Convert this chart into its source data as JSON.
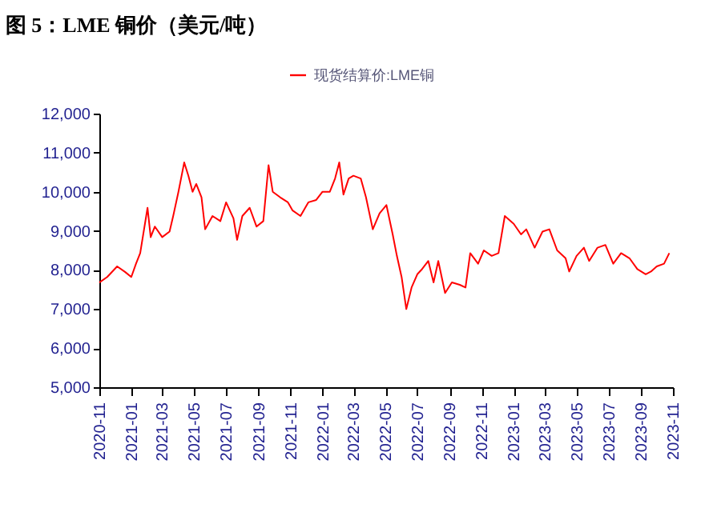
{
  "chart_data": {
    "type": "line",
    "title": "图 5：LME 铜价（美元/吨）",
    "x": [
      "2020-11-01",
      "2020-11-16",
      "2020-12-05",
      "2020-12-20",
      "2021-01-01",
      "2021-01-10",
      "2021-01-18",
      "2021-02-01",
      "2021-02-07",
      "2021-02-15",
      "2021-03-01",
      "2021-03-15",
      "2021-03-22",
      "2021-04-01",
      "2021-04-12",
      "2021-04-20",
      "2021-04-28",
      "2021-05-05",
      "2021-05-15",
      "2021-05-22",
      "2021-06-05",
      "2021-06-20",
      "2021-07-01",
      "2021-07-15",
      "2021-07-22",
      "2021-08-01",
      "2021-08-15",
      "2021-08-28",
      "2021-09-10",
      "2021-09-20",
      "2021-09-28",
      "2021-10-12",
      "2021-10-27",
      "2021-11-05",
      "2021-11-20",
      "2021-12-05",
      "2021-12-20",
      "2022-01-01",
      "2022-01-15",
      "2022-01-25",
      "2022-02-02",
      "2022-02-10",
      "2022-02-20",
      "2022-03-01",
      "2022-03-15",
      "2022-03-25",
      "2022-04-07",
      "2022-04-20",
      "2022-05-03",
      "2022-05-15",
      "2022-05-23",
      "2022-06-01",
      "2022-06-10",
      "2022-06-20",
      "2022-07-01",
      "2022-07-10",
      "2022-07-22",
      "2022-08-01",
      "2022-08-10",
      "2022-08-23",
      "2022-09-05",
      "2022-09-20",
      "2022-10-01",
      "2022-10-10",
      "2022-10-25",
      "2022-11-05",
      "2022-11-20",
      "2022-12-03",
      "2022-12-15",
      "2023-01-01",
      "2023-01-15",
      "2023-01-25",
      "2023-02-10",
      "2023-02-25",
      "2023-03-10",
      "2023-03-25",
      "2023-04-10",
      "2023-04-17",
      "2023-05-01",
      "2023-05-15",
      "2023-05-25",
      "2023-06-10",
      "2023-06-25",
      "2023-07-10",
      "2023-07-25",
      "2023-08-10",
      "2023-08-25",
      "2023-09-10",
      "2023-09-20",
      "2023-10-01",
      "2023-10-15",
      "2023-10-25"
    ],
    "series": [
      {
        "name": "现货结算价:LME铜",
        "color": "#ff0000",
        "values": [
          7680,
          7820,
          8090,
          7950,
          7820,
          8160,
          8430,
          9590,
          8840,
          9110,
          8840,
          8980,
          9380,
          10000,
          10750,
          10410,
          10000,
          10200,
          9860,
          9040,
          9380,
          9250,
          9730,
          9320,
          8770,
          9380,
          9590,
          9110,
          9250,
          10680,
          10000,
          9860,
          9730,
          9520,
          9380,
          9730,
          9790,
          10000,
          10000,
          10340,
          10750,
          9930,
          10340,
          10410,
          10340,
          9860,
          9040,
          9450,
          9660,
          8910,
          8360,
          7820,
          7000,
          7550,
          7890,
          8020,
          8230,
          7680,
          8230,
          7410,
          7680,
          7620,
          7550,
          8430,
          8160,
          8500,
          8360,
          8430,
          9380,
          9180,
          8910,
          9040,
          8570,
          8980,
          9040,
          8500,
          8300,
          7960,
          8360,
          8570,
          8230,
          8570,
          8640,
          8160,
          8430,
          8300,
          8020,
          7890,
          7960,
          8090,
          8160,
          8430
        ]
      }
    ],
    "xlim": [
      "2020-11-01",
      "2023-11-01"
    ],
    "xticks": [
      "2020-11",
      "2021-01",
      "2021-03",
      "2021-05",
      "2021-07",
      "2021-09",
      "2021-11",
      "2022-01",
      "2022-03",
      "2022-05",
      "2022-07",
      "2022-09",
      "2022-11",
      "2023-01",
      "2023-03",
      "2023-05",
      "2023-07",
      "2023-09",
      "2023-11"
    ],
    "ylim": [
      5000,
      12000
    ],
    "yticks": [
      {
        "value": 5000,
        "label": "5,000"
      },
      {
        "value": 6000,
        "label": "6,000"
      },
      {
        "value": 7000,
        "label": "7,000"
      },
      {
        "value": 8000,
        "label": "8,000"
      },
      {
        "value": 9000,
        "label": "9,000"
      },
      {
        "value": 10000,
        "label": "10,000"
      },
      {
        "value": 11000,
        "label": "11,000"
      },
      {
        "value": 12000,
        "label": "12,000"
      }
    ],
    "grid": false,
    "legend": "top",
    "marker": "none",
    "line_style": "solid"
  }
}
